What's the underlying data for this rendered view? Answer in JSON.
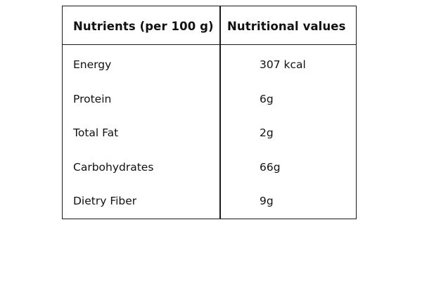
{
  "table": {
    "headers": [
      "Nutrients (per 100 g)",
      "Nutritional values"
    ],
    "rows": [
      {
        "nutrient": "Energy",
        "value": "307 kcal"
      },
      {
        "nutrient": "Protein",
        "value": "6g"
      },
      {
        "nutrient": "Total Fat",
        "value": "2g"
      },
      {
        "nutrient": "Carbohydrates",
        "value": "66g"
      },
      {
        "nutrient": "Dietry Fiber",
        "value": "9g"
      }
    ]
  }
}
